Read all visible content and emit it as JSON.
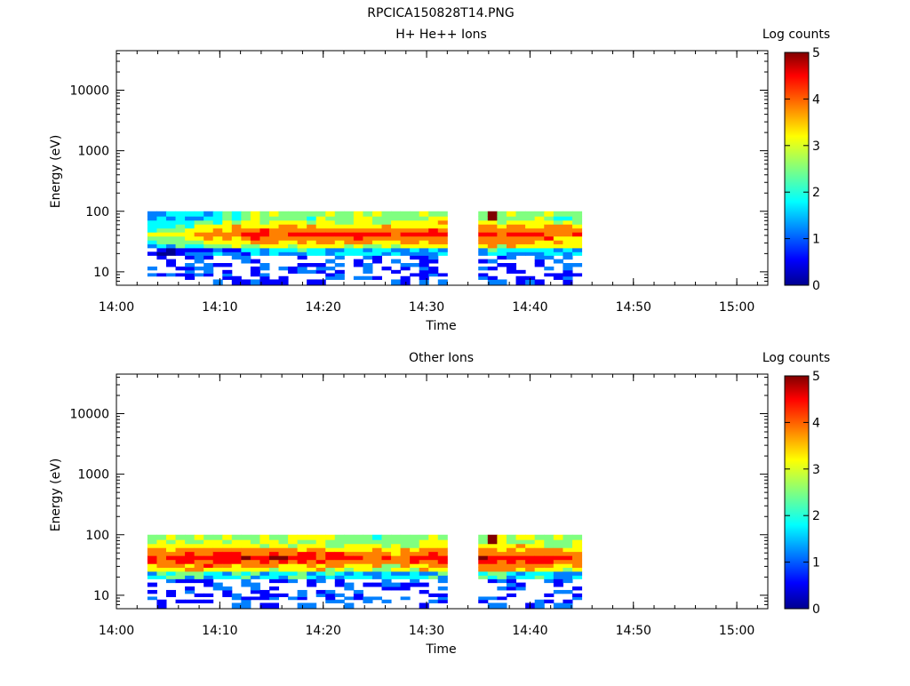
{
  "figure_title": "RPCICA150828T14.PNG",
  "colormap": [
    "#00008f",
    "#0000ff",
    "#0080ff",
    "#00ffff",
    "#80ff80",
    "#ffff00",
    "#ff8000",
    "#ff0000",
    "#800000"
  ],
  "chart_data": [
    {
      "type": "heatmap",
      "title": "H+ He++ Ions",
      "xlabel": "Time",
      "ylabel": "Energy (eV)",
      "x_ticks": [
        "14:00",
        "14:10",
        "14:20",
        "14:30",
        "14:40",
        "14:50",
        "15:00"
      ],
      "y_ticks": [
        "10",
        "100",
        "1000",
        "10000"
      ],
      "y_scale": "log",
      "colorbar_label": "Log counts",
      "colorbar_ticks": [
        "0",
        "1",
        "2",
        "3",
        "4",
        "5"
      ],
      "colorbar_range": [
        0,
        5
      ],
      "time_range": [
        "14:00",
        "15:03"
      ],
      "energy_range_ev": [
        6,
        45000
      ],
      "coverage_intervals": [
        [
          "14:03",
          "14:32"
        ],
        [
          "14:35",
          "14:45"
        ]
      ],
      "energy_bins_ev": [
        7,
        8,
        9,
        10,
        11.5,
        13,
        15,
        17.5,
        20,
        23,
        27,
        31,
        36,
        42,
        49,
        57,
        66,
        77,
        90
      ],
      "time_profiles": [
        {
          "time": "14:03",
          "peak_log_counts": 2.8,
          "peak_energy_ev": 40
        },
        {
          "time": "14:08",
          "peak_log_counts": 3.5,
          "peak_energy_ev": 40
        },
        {
          "time": "14:13",
          "peak_log_counts": 4.2,
          "peak_energy_ev": 40
        },
        {
          "time": "14:20",
          "peak_log_counts": 4.3,
          "peak_energy_ev": 40
        },
        {
          "time": "14:26",
          "peak_log_counts": 4.2,
          "peak_energy_ev": 38
        },
        {
          "time": "14:31",
          "peak_log_counts": 4.4,
          "peak_energy_ev": 40
        },
        {
          "time": "14:36",
          "peak_log_counts": 4.4,
          "peak_energy_ev": 40
        },
        {
          "time": "14:40",
          "peak_log_counts": 4.3,
          "peak_energy_ev": 40
        },
        {
          "time": "14:44",
          "peak_log_counts": 4.1,
          "peak_energy_ev": 40
        }
      ],
      "max_value_at": {
        "time": "14:36",
        "energy_ev": 85,
        "log_counts": 5
      }
    },
    {
      "type": "heatmap",
      "title": "Other Ions",
      "xlabel": "Time",
      "ylabel": "Energy (eV)",
      "x_ticks": [
        "14:00",
        "14:10",
        "14:20",
        "14:30",
        "14:40",
        "14:50",
        "15:00"
      ],
      "y_ticks": [
        "10",
        "100",
        "1000",
        "10000"
      ],
      "y_scale": "log",
      "colorbar_label": "Log counts",
      "colorbar_ticks": [
        "0",
        "1",
        "2",
        "3",
        "4",
        "5"
      ],
      "colorbar_range": [
        0,
        5
      ],
      "time_range": [
        "14:00",
        "15:03"
      ],
      "energy_range_ev": [
        6,
        45000
      ],
      "coverage_intervals": [
        [
          "14:03",
          "14:32"
        ],
        [
          "14:35",
          "14:45"
        ]
      ],
      "energy_bins_ev": [
        7,
        8,
        9,
        10,
        11.5,
        13,
        15,
        17.5,
        20,
        23,
        27,
        31,
        36,
        42,
        49,
        57,
        66,
        77,
        90
      ],
      "time_profiles": [
        {
          "time": "14:03",
          "peak_log_counts": 4.3,
          "peak_energy_ev": 40
        },
        {
          "time": "14:08",
          "peak_log_counts": 4.6,
          "peak_energy_ev": 40
        },
        {
          "time": "14:13",
          "peak_log_counts": 4.4,
          "peak_energy_ev": 40
        },
        {
          "time": "14:20",
          "peak_log_counts": 4.4,
          "peak_energy_ev": 40
        },
        {
          "time": "14:26",
          "peak_log_counts": 4.0,
          "peak_energy_ev": 38
        },
        {
          "time": "14:31",
          "peak_log_counts": 4.5,
          "peak_energy_ev": 40
        },
        {
          "time": "14:36",
          "peak_log_counts": 4.5,
          "peak_energy_ev": 40
        },
        {
          "time": "14:40",
          "peak_log_counts": 4.4,
          "peak_energy_ev": 40
        },
        {
          "time": "14:44",
          "peak_log_counts": 4.2,
          "peak_energy_ev": 40
        }
      ],
      "max_value_at": {
        "time": "14:36",
        "energy_ev": 85,
        "log_counts": 5
      }
    }
  ]
}
